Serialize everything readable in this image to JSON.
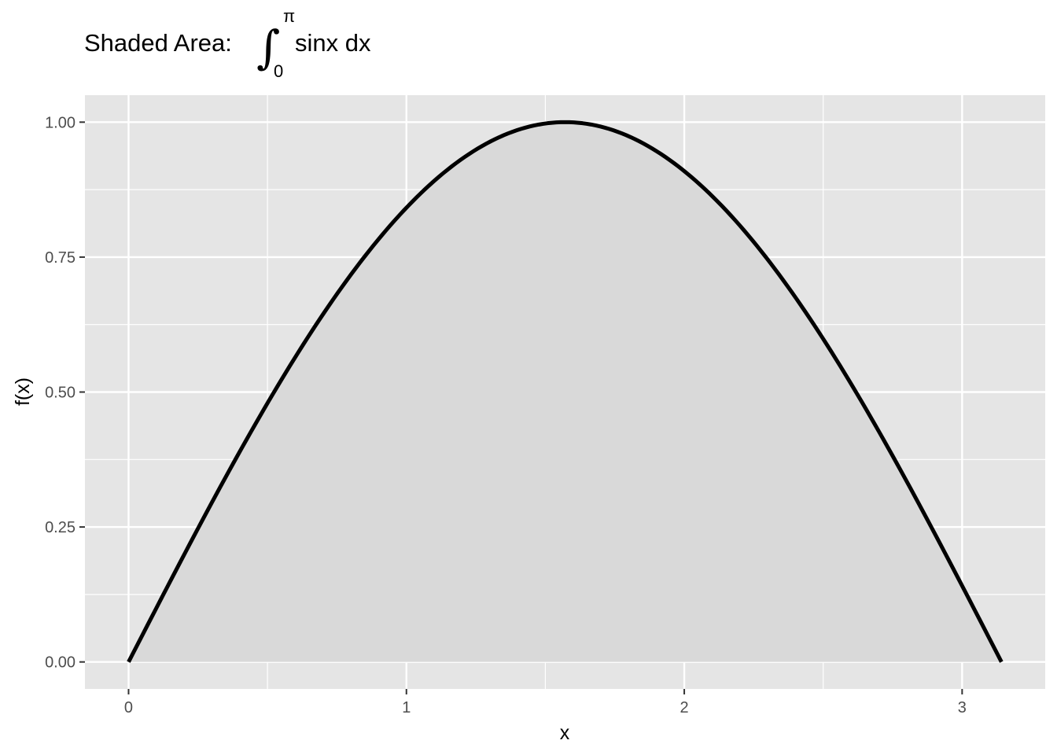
{
  "chart_data": {
    "type": "area",
    "title": {
      "prefix": "Shaded Area:",
      "integral_symbol": "∫",
      "upper_limit": "π",
      "lower_limit": "0",
      "integrand": "sinx dx"
    },
    "xlabel": "x",
    "ylabel": "f(x)",
    "function": "sin(x)",
    "domain": [
      0,
      3.14159
    ],
    "xlim": [
      -0.157,
      3.299
    ],
    "ylim": [
      -0.05,
      1.05
    ],
    "x_ticks": [
      0,
      1,
      2,
      3
    ],
    "x_tick_labels": [
      "0",
      "1",
      "2",
      "3"
    ],
    "y_ticks": [
      0,
      0.25,
      0.5,
      0.75,
      1.0
    ],
    "y_tick_labels": [
      "0.00",
      "0.25",
      "0.50",
      "0.75",
      "1.00"
    ],
    "x_minor_ticks": [
      0.5,
      1.5,
      2.5
    ],
    "y_minor_ticks": [
      0.125,
      0.375,
      0.625,
      0.875
    ],
    "grid": true,
    "colors": {
      "panel_background": "#e5e5e5",
      "grid": "#ffffff",
      "area_fill": "#d9d9d9",
      "line": "#000000",
      "tick_text": "#4d4d4d",
      "tick_mark": "#333333"
    }
  }
}
